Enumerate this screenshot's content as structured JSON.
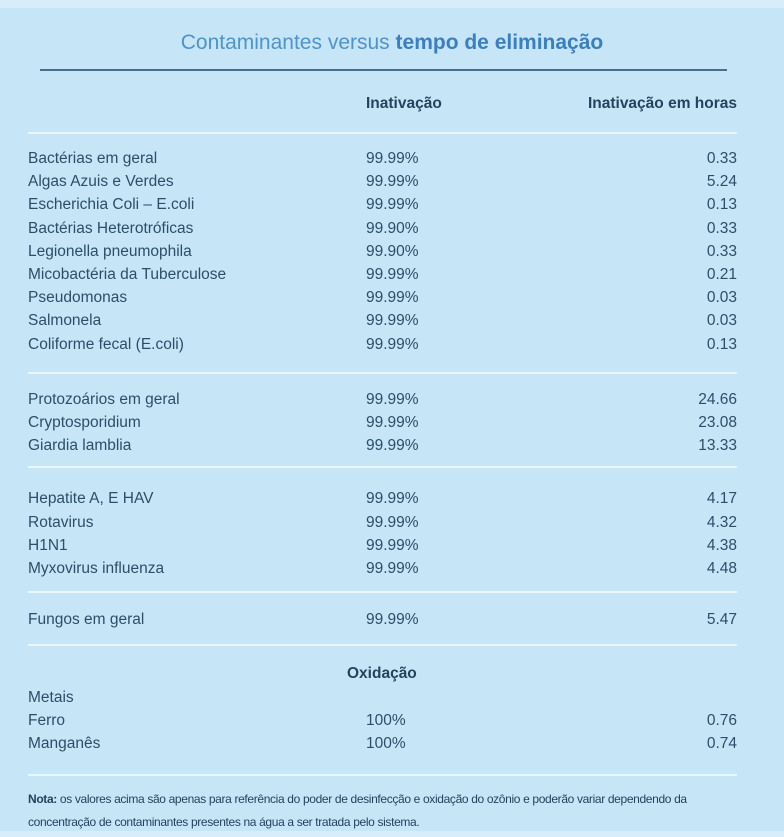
{
  "chart_data": {
    "type": "table",
    "title_regular": "Contaminantes versus ",
    "title_bold": "tempo de eliminação",
    "col_inactivation": "Inativação",
    "col_hours": "Inativação em horas",
    "groups": [
      {
        "rows": [
          {
            "name": "Bactérias em geral",
            "inactivation": "99.99%",
            "hours": "0.33"
          },
          {
            "name": "Algas Azuis e Verdes",
            "inactivation": "99.99%",
            "hours": "5.24"
          },
          {
            "name": "Escherichia Coli – E.coli",
            "inactivation": "99.99%",
            "hours": "0.13"
          },
          {
            "name": "Bactérias Heterotróficas",
            "inactivation": "99.90%",
            "hours": "0.33"
          },
          {
            "name": "Legionella pneumophila",
            "inactivation": "99.90%",
            "hours": "0.33"
          },
          {
            "name": "Micobactéria da Tuberculose",
            "inactivation": "99.99%",
            "hours": "0.21"
          },
          {
            "name": "Pseudomonas",
            "inactivation": "99.99%",
            "hours": "0.03"
          },
          {
            "name": "Salmonela",
            "inactivation": "99.99%",
            "hours": "0.03"
          },
          {
            "name": "Coliforme fecal (E.coli)",
            "inactivation": "99.99%",
            "hours": "0.13"
          }
        ]
      },
      {
        "rows": [
          {
            "name": "Protozoários em geral",
            "inactivation": "99.99%",
            "hours": "24.66"
          },
          {
            "name": "Cryptosporidium",
            "inactivation": "99.99%",
            "hours": "23.08"
          },
          {
            "name": "Giardia lamblia",
            "inactivation": "99.99%",
            "hours": "13.33"
          }
        ]
      },
      {
        "rows": [
          {
            "name": "Hepatite A, E HAV",
            "inactivation": "99.99%",
            "hours": "4.17"
          },
          {
            "name": "Rotavirus",
            "inactivation": "99.99%",
            "hours": "4.32"
          },
          {
            "name": "H1N1",
            "inactivation": "99.99%",
            "hours": "4.38"
          },
          {
            "name": "Myxovirus influenza",
            "inactivation": "99.99%",
            "hours": "4.48"
          }
        ]
      },
      {
        "rows": [
          {
            "name": "Fungos em geral",
            "inactivation": "99.99%",
            "hours": "5.47"
          }
        ]
      }
    ],
    "oxidation": {
      "header": "Oxidação",
      "rows": [
        {
          "name": "Metais",
          "inactivation": "",
          "hours": ""
        },
        {
          "name": "Ferro",
          "inactivation": "100%",
          "hours": "0.76"
        },
        {
          "name": "Manganês",
          "inactivation": "100%",
          "hours": "0.74"
        }
      ]
    },
    "note": {
      "label": "Nota:",
      "line1": "os valores acima são apenas para referência do poder de desinfecção e oxidação do ozônio e poderão variar dependendo da",
      "line2": "concentração de contaminantes presentes na água a ser tratada pelo sistema."
    }
  },
  "colors": {
    "background": "#c6e6f7",
    "title_regular": "#4e93cb",
    "title_bold": "#3a7fc1",
    "text": "#2e4d68",
    "header_text": "#26435d",
    "dark_divider": "#45708d",
    "light_divider": "#e9f5fc"
  }
}
